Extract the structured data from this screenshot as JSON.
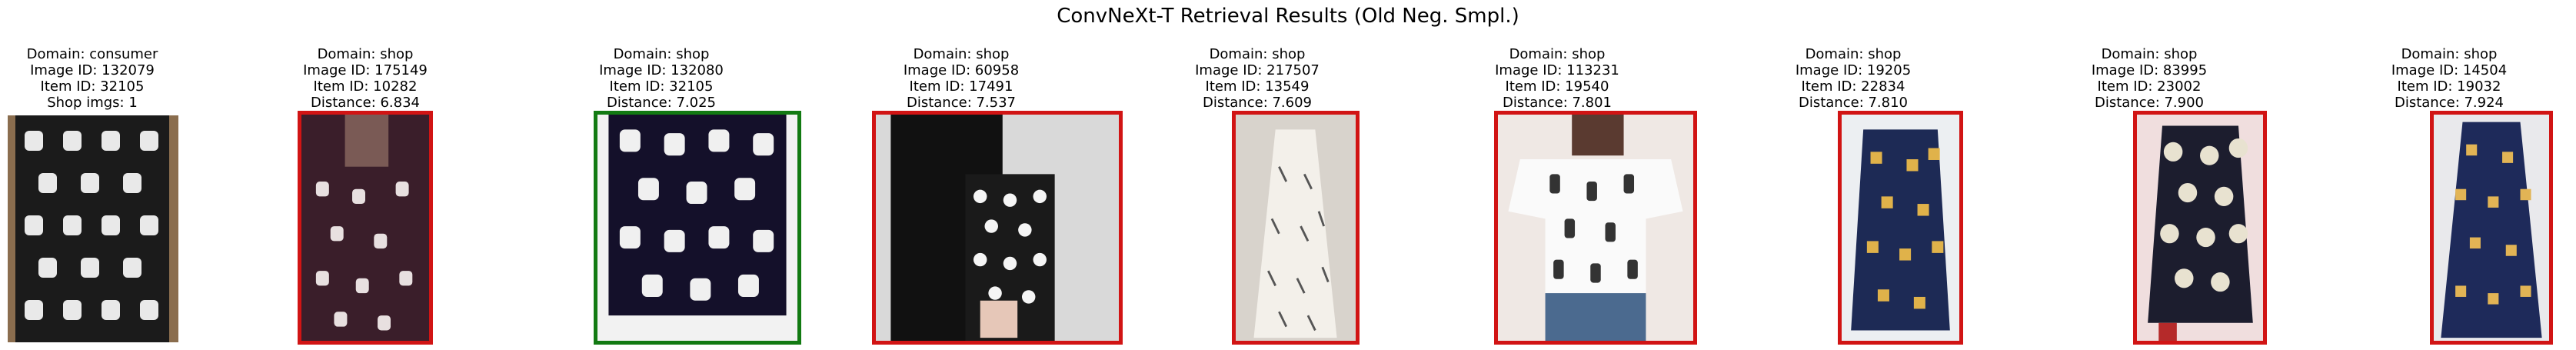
{
  "title": "ConvNeXt-T Retrieval Results (Old Neg. Smpl.)",
  "query": {
    "domain": "Domain: consumer",
    "image_id": "Image ID: 132079",
    "item_id": "Item ID: 32105",
    "extra": "Shop imgs: 1"
  },
  "results": [
    {
      "domain": "Domain: shop",
      "image_id": "Image ID: 175149",
      "item_id": "Item ID: 10282",
      "extra": "Distance: 6.834",
      "match": "red"
    },
    {
      "domain": "Domain: shop",
      "image_id": "Image ID: 132080",
      "item_id": "Item ID: 32105",
      "extra": "Distance: 7.025",
      "match": "green"
    },
    {
      "domain": "Domain: shop",
      "image_id": "Image ID: 60958",
      "item_id": "Item ID: 17491",
      "extra": "Distance: 7.537",
      "match": "red"
    },
    {
      "domain": "Domain: shop",
      "image_id": "Image ID: 217507",
      "item_id": "Item ID: 13549",
      "extra": "Distance: 7.609",
      "match": "red"
    },
    {
      "domain": "Domain: shop",
      "image_id": "Image ID: 113231",
      "item_id": "Item ID: 19540",
      "extra": "Distance: 7.801",
      "match": "red"
    },
    {
      "domain": "Domain: shop",
      "image_id": "Image ID: 19205",
      "item_id": "Item ID: 22834",
      "extra": "Distance: 7.810",
      "match": "red"
    },
    {
      "domain": "Domain: shop",
      "image_id": "Image ID: 83995",
      "item_id": "Item ID: 23002",
      "extra": "Distance: 7.900",
      "match": "red"
    },
    {
      "domain": "Domain: shop",
      "image_id": "Image ID: 14504",
      "item_id": "Item ID: 19032",
      "extra": "Distance: 7.924",
      "match": "red"
    }
  ],
  "colors": {
    "mismatch": "#d11414",
    "match": "#127a12"
  }
}
